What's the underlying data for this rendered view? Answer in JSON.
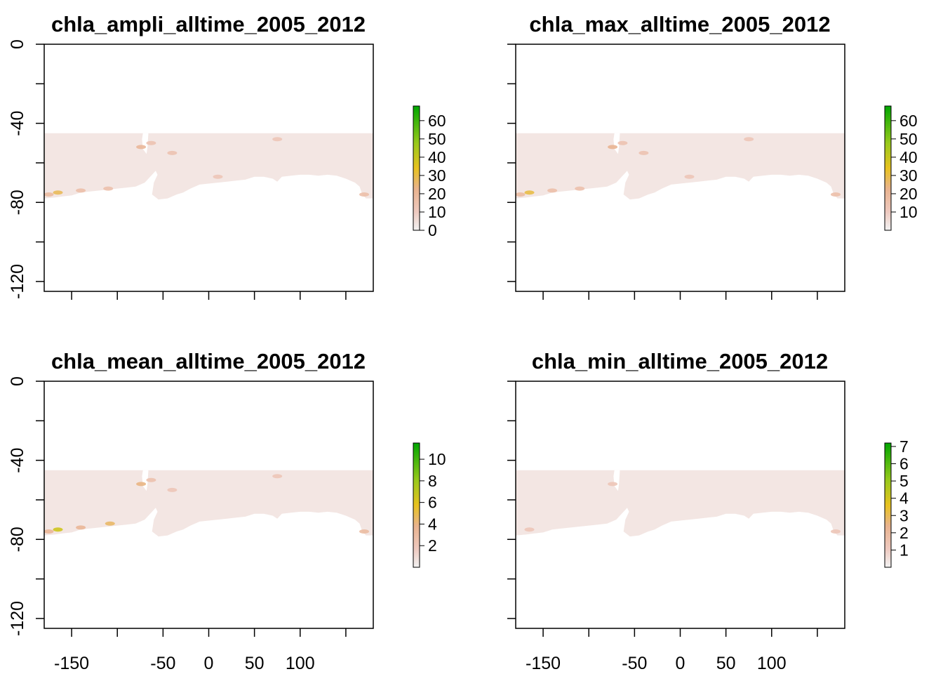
{
  "figure": {
    "background": "#ffffff",
    "land_color": "#ffffff",
    "ocean_base_color": "#f3e6e3"
  },
  "chart_data": [
    {
      "type": "heatmap",
      "title": "chla_ampli_alltime_2005_2012",
      "xlim": [
        -180,
        180
      ],
      "ylim": [
        -125,
        0
      ],
      "xticks": [
        -150,
        -100,
        -50,
        0,
        50,
        100,
        150
      ],
      "xtick_labels": [
        "-150",
        "",
        "-50",
        "0",
        "50",
        "100",
        ""
      ],
      "show_xlabels": false,
      "yticks": [
        0,
        -20,
        -40,
        -60,
        -80,
        -100,
        -120
      ],
      "ytick_labels": [
        "0",
        "",
        "-40",
        "",
        "-80",
        "",
        "-120"
      ],
      "show_ylabels": true,
      "data_extent": {
        "lat_top": -45,
        "coast_lat": -78
      },
      "colorbar": {
        "range": [
          0,
          68
        ],
        "ticks": [
          0,
          10,
          20,
          30,
          40,
          50,
          60
        ],
        "tick_labels": [
          "0",
          "10",
          "20",
          "30",
          "40",
          "50",
          "60"
        ]
      },
      "hotspots": [
        {
          "lon": -74,
          "lat": -52,
          "value": 20
        },
        {
          "lon": -165,
          "lat": -75,
          "value": 28
        },
        {
          "lon": -175,
          "lat": -76,
          "value": 18
        },
        {
          "lon": -140,
          "lat": -74,
          "value": 16
        },
        {
          "lon": -110,
          "lat": -73,
          "value": 15
        },
        {
          "lon": -63,
          "lat": -50,
          "value": 14
        },
        {
          "lon": -40,
          "lat": -55,
          "value": 14
        },
        {
          "lon": 75,
          "lat": -48,
          "value": 12
        },
        {
          "lon": 170,
          "lat": -76,
          "value": 16
        },
        {
          "lon": 10,
          "lat": -67,
          "value": 10
        }
      ]
    },
    {
      "type": "heatmap",
      "title": "chla_max_alltime_2005_2012",
      "xlim": [
        -180,
        180
      ],
      "ylim": [
        -125,
        0
      ],
      "xticks": [
        -150,
        -100,
        -50,
        0,
        50,
        100,
        150
      ],
      "xtick_labels": [
        "-150",
        "",
        "-50",
        "0",
        "50",
        "100",
        ""
      ],
      "show_xlabels": false,
      "yticks": [
        0,
        -20,
        -40,
        -60,
        -80,
        -100,
        -120
      ],
      "ytick_labels": [
        "0",
        "",
        "-40",
        "",
        "-80",
        "",
        "-120"
      ],
      "show_ylabels": false,
      "data_extent": {
        "lat_top": -45,
        "coast_lat": -78
      },
      "colorbar": {
        "range": [
          0,
          68
        ],
        "ticks": [
          10,
          20,
          30,
          40,
          50,
          60
        ],
        "tick_labels": [
          "10",
          "20",
          "30",
          "40",
          "50",
          "60"
        ]
      },
      "hotspots": [
        {
          "lon": -74,
          "lat": -52,
          "value": 22
        },
        {
          "lon": -165,
          "lat": -75,
          "value": 30
        },
        {
          "lon": -175,
          "lat": -76,
          "value": 18
        },
        {
          "lon": -140,
          "lat": -74,
          "value": 16
        },
        {
          "lon": -110,
          "lat": -73,
          "value": 15
        },
        {
          "lon": -63,
          "lat": -50,
          "value": 14
        },
        {
          "lon": -40,
          "lat": -55,
          "value": 14
        },
        {
          "lon": 75,
          "lat": -48,
          "value": 12
        },
        {
          "lon": 170,
          "lat": -76,
          "value": 16
        },
        {
          "lon": 10,
          "lat": -67,
          "value": 10
        }
      ]
    },
    {
      "type": "heatmap",
      "title": "chla_mean_alltime_2005_2012",
      "xlim": [
        -180,
        180
      ],
      "ylim": [
        -125,
        0
      ],
      "xticks": [
        -150,
        -100,
        -50,
        0,
        50,
        100,
        150
      ],
      "xtick_labels": [
        "-150",
        "",
        "-50",
        "0",
        "50",
        "100",
        ""
      ],
      "show_xlabels": true,
      "yticks": [
        0,
        -20,
        -40,
        -60,
        -80,
        -100,
        -120
      ],
      "ytick_labels": [
        "0",
        "",
        "-40",
        "",
        "-80",
        "",
        "-120"
      ],
      "show_ylabels": true,
      "data_extent": {
        "lat_top": -45,
        "coast_lat": -78
      },
      "colorbar": {
        "range": [
          0,
          11.5
        ],
        "ticks": [
          2,
          4,
          6,
          8,
          10
        ],
        "tick_labels": [
          "2",
          "4",
          "6",
          "8",
          "10"
        ]
      },
      "hotspots": [
        {
          "lon": -74,
          "lat": -52,
          "value": 4
        },
        {
          "lon": -165,
          "lat": -75,
          "value": 6.5
        },
        {
          "lon": -175,
          "lat": -76,
          "value": 3.5
        },
        {
          "lon": -140,
          "lat": -74,
          "value": 3.5
        },
        {
          "lon": -108,
          "lat": -72,
          "value": 4.5
        },
        {
          "lon": -63,
          "lat": -50,
          "value": 2.5
        },
        {
          "lon": -40,
          "lat": -55,
          "value": 2
        },
        {
          "lon": 75,
          "lat": -48,
          "value": 2
        },
        {
          "lon": 170,
          "lat": -76,
          "value": 3
        }
      ]
    },
    {
      "type": "heatmap",
      "title": "chla_min_alltime_2005_2012",
      "xlim": [
        -180,
        180
      ],
      "ylim": [
        -125,
        0
      ],
      "xticks": [
        -150,
        -100,
        -50,
        0,
        50,
        100,
        150
      ],
      "xtick_labels": [
        "-150",
        "",
        "-50",
        "0",
        "50",
        "100",
        ""
      ],
      "show_xlabels": true,
      "yticks": [
        0,
        -20,
        -40,
        -60,
        -80,
        -100,
        -120
      ],
      "ytick_labels": [
        "0",
        "",
        "-40",
        "",
        "-80",
        "",
        "-120"
      ],
      "show_ylabels": false,
      "data_extent": {
        "lat_top": -45,
        "coast_lat": -78
      },
      "colorbar": {
        "range": [
          0,
          7.2
        ],
        "ticks": [
          1,
          2,
          3,
          4,
          5,
          6,
          7
        ],
        "tick_labels": [
          "1",
          "2",
          "3",
          "4",
          "5",
          "6",
          "7"
        ]
      },
      "hotspots": [
        {
          "lon": -74,
          "lat": -52,
          "value": 0.7
        },
        {
          "lon": -165,
          "lat": -75,
          "value": 0.9
        },
        {
          "lon": 170,
          "lat": -76,
          "value": 0.8
        }
      ]
    }
  ]
}
